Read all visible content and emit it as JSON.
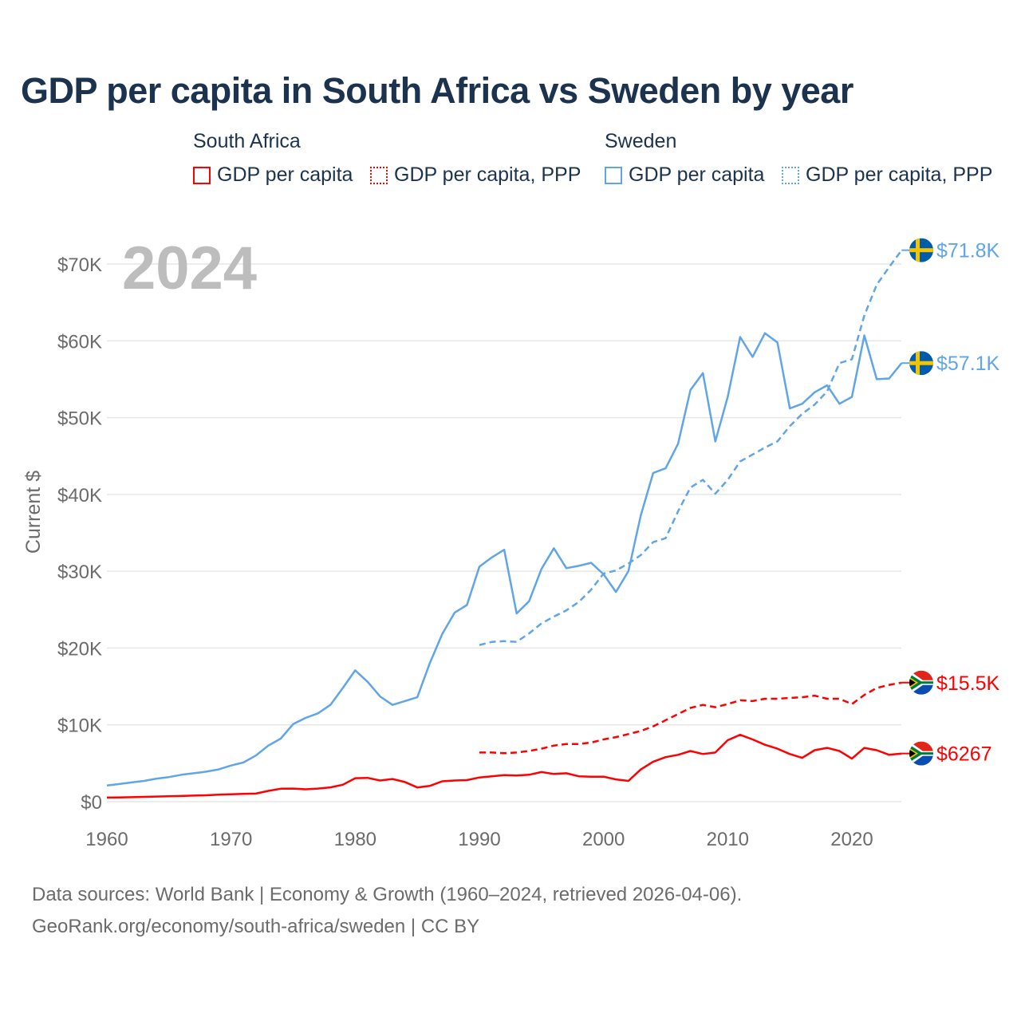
{
  "title": "GDP per capita in South Africa vs Sweden by year",
  "legend": {
    "groups": [
      {
        "name": "South Africa",
        "items": [
          "GDP per capita",
          "GDP per capita, PPP"
        ]
      },
      {
        "name": "Sweden",
        "items": [
          "GDP per capita",
          "GDP per capita, PPP"
        ]
      }
    ]
  },
  "year_watermark": "2024",
  "footer": {
    "line1": "Data sources: World Bank | Economy & Growth (1960–2024, retrieved 2026-04-06).",
    "line2": "GeoRank.org/economy/south-africa/sweden | CC BY"
  },
  "colors": {
    "south_africa": "#ff0000",
    "sweden": "#5fa5e8",
    "grid": "#e6e6e6",
    "axis_text": "#6b6b6b"
  },
  "chart_data": {
    "type": "line",
    "title": "GDP per capita in South Africa vs Sweden by year",
    "xlabel": "",
    "ylabel": "Current $",
    "xlim": [
      1960,
      2024
    ],
    "ylim": [
      0,
      70000
    ],
    "x_ticks": [
      1960,
      1970,
      1980,
      1990,
      2000,
      2010,
      2020
    ],
    "x_tick_labels": [
      "1960",
      "1970",
      "1980",
      "1990",
      "2000",
      "2010",
      "2020"
    ],
    "y_ticks": [
      0,
      10000,
      20000,
      30000,
      40000,
      50000,
      60000,
      70000
    ],
    "y_tick_labels": [
      "$0",
      "$10K",
      "$20K",
      "$30K",
      "$40K",
      "$50K",
      "$60K",
      "$70K"
    ],
    "grid": true,
    "legend_position": "top",
    "series": [
      {
        "name": "South Africa GDP per capita",
        "country": "south_africa",
        "style": "solid",
        "start": 1960,
        "end_label": "$6267",
        "values": [
          530,
          550,
          580,
          620,
          660,
          700,
          740,
          790,
          830,
          910,
          960,
          1020,
          1050,
          1400,
          1680,
          1700,
          1610,
          1700,
          1860,
          2200,
          3050,
          3100,
          2750,
          2950,
          2550,
          1850,
          2050,
          2650,
          2750,
          2800,
          3150,
          3300,
          3450,
          3400,
          3500,
          3850,
          3600,
          3700,
          3300,
          3250,
          3250,
          2900,
          2700,
          4200,
          5200,
          5800,
          6100,
          6600,
          6200,
          6400,
          8000,
          8700,
          8100,
          7400,
          6900,
          6200,
          5700,
          6700,
          7000,
          6600,
          5600,
          7000,
          6700,
          6100,
          6267
        ]
      },
      {
        "name": "South Africa GDP per capita, PPP",
        "country": "south_africa",
        "style": "dashed",
        "start": 1990,
        "end_label": "$15.5K",
        "values": [
          6400,
          6400,
          6300,
          6400,
          6600,
          6900,
          7300,
          7500,
          7500,
          7700,
          8100,
          8400,
          8800,
          9200,
          9800,
          10600,
          11400,
          12200,
          12600,
          12300,
          12700,
          13200,
          13100,
          13400,
          13400,
          13500,
          13600,
          13800,
          13400,
          13400,
          12700,
          13900,
          14800,
          15200,
          15500
        ]
      },
      {
        "name": "Sweden GDP per capita",
        "country": "sweden",
        "style": "solid",
        "start": 1960,
        "end_label": "$57.1K",
        "values": [
          2100,
          2300,
          2500,
          2700,
          3000,
          3200,
          3500,
          3700,
          3900,
          4200,
          4700,
          5100,
          6000,
          7300,
          8200,
          10100,
          10900,
          11500,
          12600,
          14800,
          17100,
          15600,
          13700,
          12600,
          13100,
          13600,
          18000,
          21800,
          24600,
          25600,
          30600,
          31800,
          32800,
          24500,
          26100,
          30300,
          33000,
          30400,
          30700,
          31100,
          29600,
          27300,
          30000,
          37300,
          42800,
          43400,
          46600,
          53600,
          55800,
          46900,
          52700,
          60500,
          57900,
          61000,
          59800,
          51200,
          51800,
          53300,
          54200,
          51800,
          52700,
          60700,
          55000,
          55100,
          57100
        ]
      },
      {
        "name": "Sweden GDP per capita, PPP",
        "country": "sweden",
        "style": "dashed",
        "start": 1990,
        "end_label": "$71.8K",
        "values": [
          20400,
          20800,
          20900,
          20800,
          21900,
          23200,
          24100,
          24900,
          26000,
          27600,
          29700,
          30100,
          31000,
          32100,
          33800,
          34300,
          37800,
          40900,
          41900,
          40100,
          41900,
          44300,
          45200,
          46100,
          46900,
          48900,
          50500,
          51700,
          53400,
          57100,
          57600,
          63300,
          67300,
          69600,
          71800
        ]
      }
    ]
  }
}
